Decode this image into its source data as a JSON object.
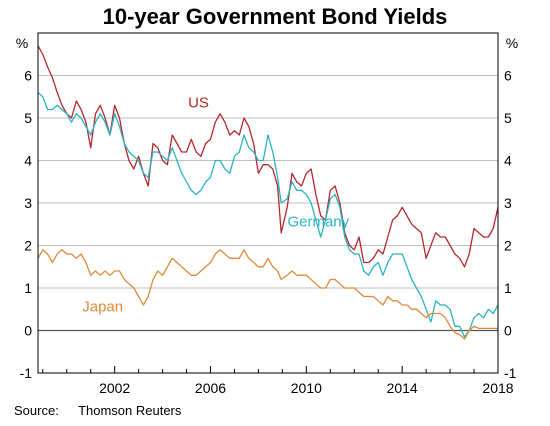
{
  "chart_data": {
    "type": "line",
    "title": "10-year Government Bond Yields",
    "ylabel_left": "%",
    "ylabel_right": "%",
    "ylim": [
      -1,
      7
    ],
    "xlim": [
      1998.8,
      2018
    ],
    "yticks": [
      -1,
      0,
      1,
      2,
      3,
      4,
      5,
      6
    ],
    "xticks": [
      2002,
      2006,
      2010,
      2014,
      2018
    ],
    "grid": true,
    "series": [
      {
        "name": "US",
        "color": "#b5272d",
        "label_pos": [
          2005.5,
          5.25
        ],
        "points": [
          [
            1998.8,
            6.7
          ],
          [
            1999.0,
            6.5
          ],
          [
            1999.2,
            6.2
          ],
          [
            1999.4,
            5.95
          ],
          [
            1999.6,
            5.6
          ],
          [
            1999.8,
            5.3
          ],
          [
            2000.0,
            5.1
          ],
          [
            2000.2,
            5.0
          ],
          [
            2000.4,
            5.4
          ],
          [
            2000.6,
            5.2
          ],
          [
            2000.8,
            4.9
          ],
          [
            2001.0,
            4.3
          ],
          [
            2001.2,
            5.1
          ],
          [
            2001.4,
            5.3
          ],
          [
            2001.6,
            5.0
          ],
          [
            2001.8,
            4.6
          ],
          [
            2002.0,
            5.3
          ],
          [
            2002.2,
            5.0
          ],
          [
            2002.4,
            4.4
          ],
          [
            2002.6,
            4.0
          ],
          [
            2002.8,
            3.8
          ],
          [
            2003.0,
            4.1
          ],
          [
            2003.2,
            3.7
          ],
          [
            2003.4,
            3.4
          ],
          [
            2003.6,
            4.4
          ],
          [
            2003.8,
            4.3
          ],
          [
            2004.0,
            4.0
          ],
          [
            2004.2,
            3.9
          ],
          [
            2004.4,
            4.6
          ],
          [
            2004.6,
            4.4
          ],
          [
            2004.8,
            4.2
          ],
          [
            2005.0,
            4.2
          ],
          [
            2005.2,
            4.5
          ],
          [
            2005.4,
            4.2
          ],
          [
            2005.6,
            4.1
          ],
          [
            2005.8,
            4.4
          ],
          [
            2006.0,
            4.5
          ],
          [
            2006.2,
            4.9
          ],
          [
            2006.4,
            5.1
          ],
          [
            2006.6,
            4.9
          ],
          [
            2006.8,
            4.6
          ],
          [
            2007.0,
            4.7
          ],
          [
            2007.2,
            4.6
          ],
          [
            2007.4,
            5.0
          ],
          [
            2007.6,
            4.8
          ],
          [
            2007.8,
            4.4
          ],
          [
            2008.0,
            3.7
          ],
          [
            2008.2,
            3.9
          ],
          [
            2008.4,
            3.9
          ],
          [
            2008.6,
            3.8
          ],
          [
            2008.8,
            3.4
          ],
          [
            2008.95,
            2.3
          ],
          [
            2009.2,
            2.9
          ],
          [
            2009.4,
            3.7
          ],
          [
            2009.6,
            3.5
          ],
          [
            2009.8,
            3.4
          ],
          [
            2010.0,
            3.7
          ],
          [
            2010.2,
            3.8
          ],
          [
            2010.4,
            3.2
          ],
          [
            2010.6,
            2.7
          ],
          [
            2010.8,
            2.6
          ],
          [
            2011.0,
            3.3
          ],
          [
            2011.2,
            3.4
          ],
          [
            2011.4,
            3.0
          ],
          [
            2011.6,
            2.3
          ],
          [
            2011.8,
            2.0
          ],
          [
            2012.0,
            1.9
          ],
          [
            2012.2,
            2.2
          ],
          [
            2012.4,
            1.6
          ],
          [
            2012.6,
            1.6
          ],
          [
            2012.8,
            1.7
          ],
          [
            2013.0,
            1.9
          ],
          [
            2013.2,
            1.8
          ],
          [
            2013.4,
            2.2
          ],
          [
            2013.6,
            2.6
          ],
          [
            2013.8,
            2.7
          ],
          [
            2014.0,
            2.9
          ],
          [
            2014.2,
            2.7
          ],
          [
            2014.4,
            2.5
          ],
          [
            2014.6,
            2.4
          ],
          [
            2014.8,
            2.3
          ],
          [
            2015.0,
            1.7
          ],
          [
            2015.2,
            2.0
          ],
          [
            2015.4,
            2.3
          ],
          [
            2015.6,
            2.2
          ],
          [
            2015.8,
            2.2
          ],
          [
            2016.0,
            2.0
          ],
          [
            2016.2,
            1.8
          ],
          [
            2016.4,
            1.7
          ],
          [
            2016.6,
            1.5
          ],
          [
            2016.8,
            1.8
          ],
          [
            2017.0,
            2.4
          ],
          [
            2017.2,
            2.3
          ],
          [
            2017.4,
            2.2
          ],
          [
            2017.6,
            2.2
          ],
          [
            2017.8,
            2.4
          ],
          [
            2018.0,
            2.9
          ]
        ]
      },
      {
        "name": "Germany",
        "color": "#2ab4c0",
        "label_pos": [
          2010.5,
          2.45
        ],
        "points": [
          [
            1998.8,
            5.6
          ],
          [
            1999.0,
            5.5
          ],
          [
            1999.2,
            5.2
          ],
          [
            1999.4,
            5.2
          ],
          [
            1999.6,
            5.3
          ],
          [
            1999.8,
            5.2
          ],
          [
            2000.0,
            5.1
          ],
          [
            2000.2,
            4.9
          ],
          [
            2000.4,
            5.1
          ],
          [
            2000.6,
            5.0
          ],
          [
            2000.8,
            4.8
          ],
          [
            2001.0,
            4.6
          ],
          [
            2001.2,
            4.9
          ],
          [
            2001.4,
            5.1
          ],
          [
            2001.6,
            4.9
          ],
          [
            2001.8,
            4.6
          ],
          [
            2002.0,
            5.1
          ],
          [
            2002.2,
            4.8
          ],
          [
            2002.4,
            4.4
          ],
          [
            2002.6,
            4.2
          ],
          [
            2002.8,
            4.1
          ],
          [
            2003.0,
            4.0
          ],
          [
            2003.2,
            3.7
          ],
          [
            2003.4,
            3.6
          ],
          [
            2003.6,
            4.2
          ],
          [
            2003.8,
            4.2
          ],
          [
            2004.0,
            4.1
          ],
          [
            2004.2,
            4.0
          ],
          [
            2004.4,
            4.3
          ],
          [
            2004.6,
            4.0
          ],
          [
            2004.8,
            3.7
          ],
          [
            2005.0,
            3.5
          ],
          [
            2005.2,
            3.3
          ],
          [
            2005.4,
            3.2
          ],
          [
            2005.6,
            3.3
          ],
          [
            2005.8,
            3.5
          ],
          [
            2006.0,
            3.6
          ],
          [
            2006.2,
            4.0
          ],
          [
            2006.4,
            4.0
          ],
          [
            2006.6,
            3.8
          ],
          [
            2006.8,
            3.7
          ],
          [
            2007.0,
            4.1
          ],
          [
            2007.2,
            4.2
          ],
          [
            2007.4,
            4.6
          ],
          [
            2007.6,
            4.3
          ],
          [
            2007.8,
            4.2
          ],
          [
            2008.0,
            4.0
          ],
          [
            2008.2,
            4.0
          ],
          [
            2008.4,
            4.6
          ],
          [
            2008.6,
            4.2
          ],
          [
            2008.8,
            3.6
          ],
          [
            2008.95,
            3.0
          ],
          [
            2009.2,
            3.1
          ],
          [
            2009.4,
            3.5
          ],
          [
            2009.6,
            3.3
          ],
          [
            2009.8,
            3.3
          ],
          [
            2010.0,
            3.2
          ],
          [
            2010.2,
            3.0
          ],
          [
            2010.4,
            2.6
          ],
          [
            2010.6,
            2.2
          ],
          [
            2010.8,
            2.6
          ],
          [
            2011.0,
            3.1
          ],
          [
            2011.2,
            3.2
          ],
          [
            2011.4,
            2.9
          ],
          [
            2011.6,
            2.2
          ],
          [
            2011.8,
            1.9
          ],
          [
            2012.0,
            1.8
          ],
          [
            2012.2,
            1.8
          ],
          [
            2012.4,
            1.4
          ],
          [
            2012.6,
            1.3
          ],
          [
            2012.8,
            1.5
          ],
          [
            2013.0,
            1.6
          ],
          [
            2013.2,
            1.3
          ],
          [
            2013.4,
            1.6
          ],
          [
            2013.6,
            1.8
          ],
          [
            2013.8,
            1.8
          ],
          [
            2014.0,
            1.8
          ],
          [
            2014.2,
            1.5
          ],
          [
            2014.4,
            1.2
          ],
          [
            2014.6,
            1.0
          ],
          [
            2014.8,
            0.8
          ],
          [
            2015.0,
            0.5
          ],
          [
            2015.2,
            0.2
          ],
          [
            2015.4,
            0.7
          ],
          [
            2015.6,
            0.6
          ],
          [
            2015.8,
            0.6
          ],
          [
            2016.0,
            0.5
          ],
          [
            2016.2,
            0.1
          ],
          [
            2016.4,
            0.1
          ],
          [
            2016.6,
            -0.15
          ],
          [
            2016.8,
            0.0
          ],
          [
            2017.0,
            0.3
          ],
          [
            2017.2,
            0.4
          ],
          [
            2017.4,
            0.3
          ],
          [
            2017.6,
            0.5
          ],
          [
            2017.8,
            0.4
          ],
          [
            2018.0,
            0.6
          ]
        ]
      },
      {
        "name": "Japan",
        "color": "#e08a3c",
        "label_pos": [
          2001.5,
          0.45
        ],
        "points": [
          [
            1998.8,
            1.7
          ],
          [
            1999.0,
            1.9
          ],
          [
            1999.2,
            1.8
          ],
          [
            1999.4,
            1.6
          ],
          [
            1999.6,
            1.8
          ],
          [
            1999.8,
            1.9
          ],
          [
            2000.0,
            1.8
          ],
          [
            2000.2,
            1.8
          ],
          [
            2000.4,
            1.7
          ],
          [
            2000.6,
            1.8
          ],
          [
            2000.8,
            1.6
          ],
          [
            2001.0,
            1.3
          ],
          [
            2001.2,
            1.4
          ],
          [
            2001.4,
            1.3
          ],
          [
            2001.6,
            1.4
          ],
          [
            2001.8,
            1.3
          ],
          [
            2002.0,
            1.4
          ],
          [
            2002.2,
            1.4
          ],
          [
            2002.4,
            1.2
          ],
          [
            2002.6,
            1.1
          ],
          [
            2002.8,
            1.0
          ],
          [
            2003.0,
            0.8
          ],
          [
            2003.2,
            0.6
          ],
          [
            2003.4,
            0.8
          ],
          [
            2003.6,
            1.2
          ],
          [
            2003.8,
            1.4
          ],
          [
            2004.0,
            1.3
          ],
          [
            2004.2,
            1.5
          ],
          [
            2004.4,
            1.7
          ],
          [
            2004.6,
            1.6
          ],
          [
            2004.8,
            1.5
          ],
          [
            2005.0,
            1.4
          ],
          [
            2005.2,
            1.3
          ],
          [
            2005.4,
            1.3
          ],
          [
            2005.6,
            1.4
          ],
          [
            2005.8,
            1.5
          ],
          [
            2006.0,
            1.6
          ],
          [
            2006.2,
            1.8
          ],
          [
            2006.4,
            1.9
          ],
          [
            2006.6,
            1.8
          ],
          [
            2006.8,
            1.7
          ],
          [
            2007.0,
            1.7
          ],
          [
            2007.2,
            1.7
          ],
          [
            2007.4,
            1.9
          ],
          [
            2007.6,
            1.7
          ],
          [
            2007.8,
            1.6
          ],
          [
            2008.0,
            1.5
          ],
          [
            2008.2,
            1.5
          ],
          [
            2008.4,
            1.7
          ],
          [
            2008.6,
            1.5
          ],
          [
            2008.8,
            1.4
          ],
          [
            2008.95,
            1.2
          ],
          [
            2009.2,
            1.3
          ],
          [
            2009.4,
            1.4
          ],
          [
            2009.6,
            1.3
          ],
          [
            2009.8,
            1.3
          ],
          [
            2010.0,
            1.3
          ],
          [
            2010.2,
            1.2
          ],
          [
            2010.4,
            1.1
          ],
          [
            2010.6,
            1.0
          ],
          [
            2010.8,
            1.0
          ],
          [
            2011.0,
            1.2
          ],
          [
            2011.2,
            1.2
          ],
          [
            2011.4,
            1.1
          ],
          [
            2011.6,
            1.0
          ],
          [
            2011.8,
            1.0
          ],
          [
            2012.0,
            1.0
          ],
          [
            2012.2,
            0.9
          ],
          [
            2012.4,
            0.8
          ],
          [
            2012.6,
            0.8
          ],
          [
            2012.8,
            0.8
          ],
          [
            2013.0,
            0.7
          ],
          [
            2013.2,
            0.6
          ],
          [
            2013.4,
            0.8
          ],
          [
            2013.6,
            0.7
          ],
          [
            2013.8,
            0.7
          ],
          [
            2014.0,
            0.6
          ],
          [
            2014.2,
            0.6
          ],
          [
            2014.4,
            0.5
          ],
          [
            2014.6,
            0.5
          ],
          [
            2014.8,
            0.4
          ],
          [
            2015.0,
            0.3
          ],
          [
            2015.2,
            0.4
          ],
          [
            2015.4,
            0.4
          ],
          [
            2015.6,
            0.4
          ],
          [
            2015.8,
            0.3
          ],
          [
            2016.0,
            0.1
          ],
          [
            2016.2,
            -0.05
          ],
          [
            2016.4,
            -0.1
          ],
          [
            2016.6,
            -0.2
          ],
          [
            2016.8,
            0.0
          ],
          [
            2017.0,
            0.1
          ],
          [
            2017.2,
            0.05
          ],
          [
            2017.4,
            0.05
          ],
          [
            2017.6,
            0.05
          ],
          [
            2017.8,
            0.05
          ],
          [
            2018.0,
            0.05
          ]
        ]
      }
    ]
  },
  "source": {
    "label": "Source:",
    "text": "Thomson Reuters"
  }
}
